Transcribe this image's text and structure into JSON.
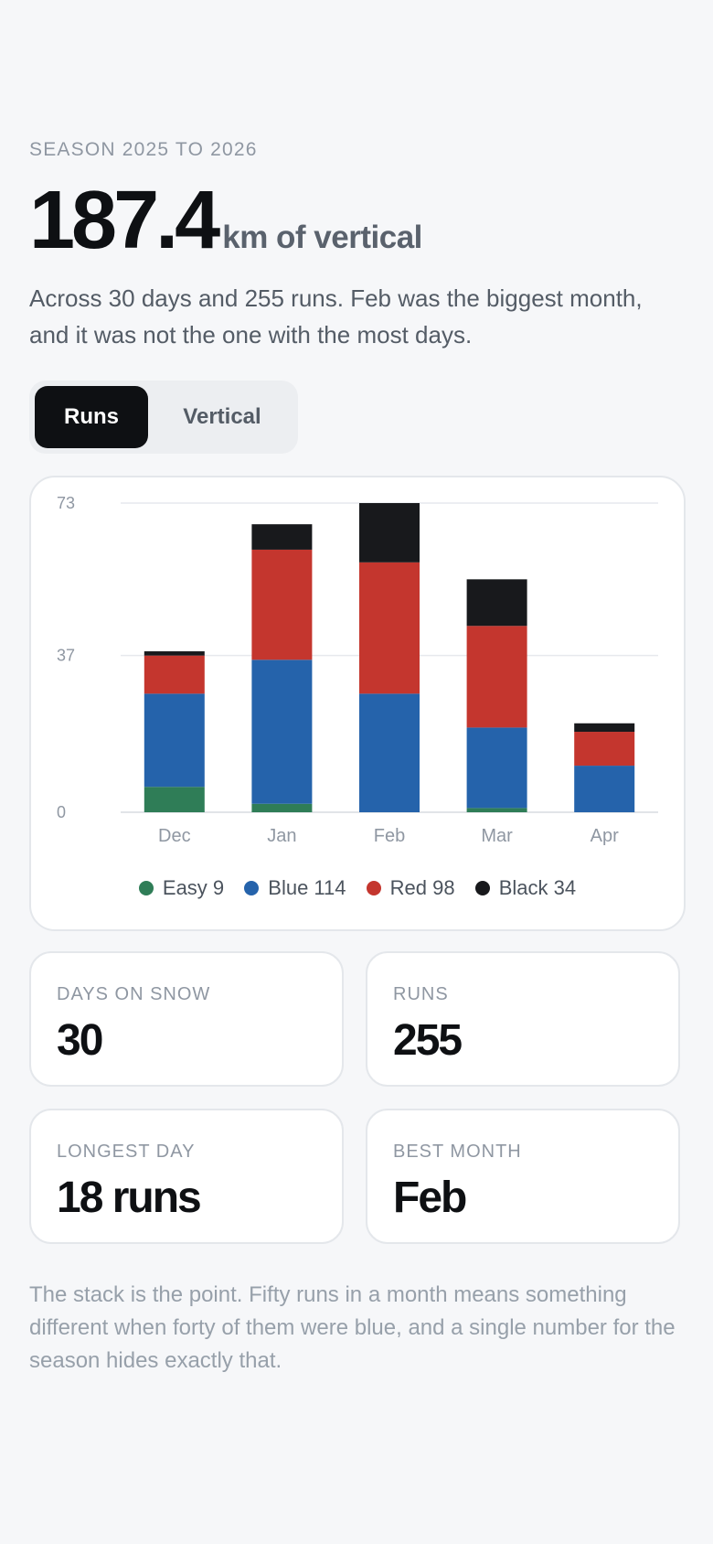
{
  "header": {
    "season": "SEASON 2025 TO 2026",
    "total": "187.4",
    "unit": "km of vertical",
    "summary": "Across 30 days and 255 runs. Feb was the biggest month, and it was not the one with the most days."
  },
  "toggle": {
    "options": [
      {
        "label": "Runs",
        "active": true
      },
      {
        "label": "Vertical",
        "active": false
      }
    ]
  },
  "legend": [
    {
      "label": "Easy 9",
      "color": "#2f7d57"
    },
    {
      "label": "Blue 114",
      "color": "#2563ab"
    },
    {
      "label": "Red 98",
      "color": "#c4362e"
    },
    {
      "label": "Black 34",
      "color": "#18191c"
    }
  ],
  "chart_data": {
    "type": "bar",
    "stacked": true,
    "categories": [
      "Dec",
      "Jan",
      "Feb",
      "Mar",
      "Apr"
    ],
    "series": [
      {
        "name": "Easy",
        "color": "#2f7d57",
        "values": [
          6,
          2,
          0,
          1,
          0
        ]
      },
      {
        "name": "Blue",
        "color": "#2563ab",
        "values": [
          22,
          34,
          28,
          19,
          11
        ]
      },
      {
        "name": "Red",
        "color": "#c4362e",
        "values": [
          9,
          26,
          31,
          24,
          8
        ]
      },
      {
        "name": "Black",
        "color": "#18191c",
        "values": [
          1,
          6,
          14,
          11,
          2
        ]
      }
    ],
    "y_ticks": [
      "0",
      "37",
      "73"
    ],
    "ylim": [
      0,
      73
    ],
    "grid": true,
    "legend_position": "bottom"
  },
  "stats": [
    {
      "label": "DAYS ON SNOW",
      "value": "30"
    },
    {
      "label": "RUNS",
      "value": "255"
    },
    {
      "label": "LONGEST DAY",
      "value": "18 runs"
    },
    {
      "label": "BEST MONTH",
      "value": "Feb"
    }
  ],
  "footnote": "The stack is the point. Fifty runs in a month means something different when forty of them were blue, and a single number for the season hides exactly that."
}
